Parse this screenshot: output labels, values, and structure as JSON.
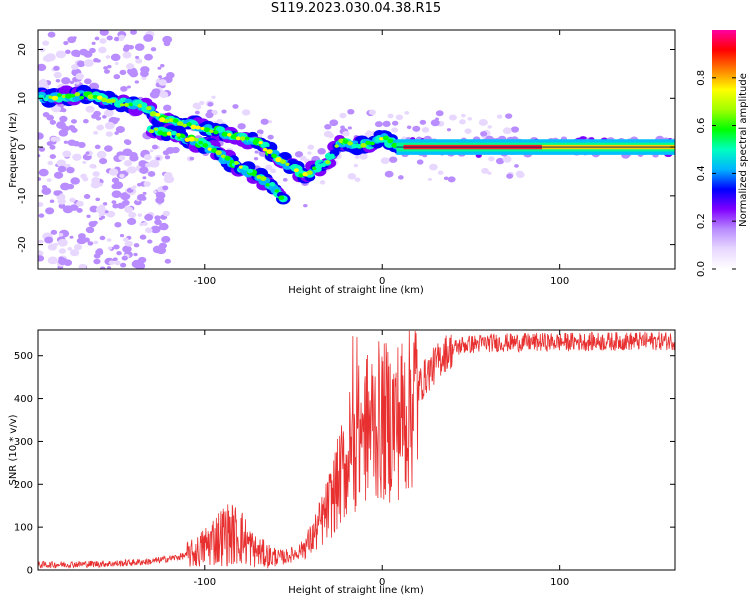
{
  "title": "S119.2023.030.04.38.R15",
  "chart_data": [
    {
      "type": "heatmap",
      "xlabel": "Height of straight line (km)",
      "ylabel": "Frequency (Hz)",
      "xlim": [
        -194,
        165
      ],
      "ylim": [
        -25,
        24
      ],
      "x_ticks": [
        -100,
        0,
        100
      ],
      "y_ticks": [
        -20,
        -10,
        0,
        10,
        20
      ],
      "colorbar": {
        "label": "Normalized spectral amplitude",
        "range": [
          0,
          1
        ],
        "ticks": [
          "0.0",
          "0.2",
          "0.4",
          "0.6",
          "0.8"
        ],
        "colors": [
          "#ffffff",
          "#e8d8ff",
          "#b98cff",
          "#8000ff",
          "#0000ff",
          "#00b4ff",
          "#00ffc0",
          "#00ff00",
          "#a0ff00",
          "#ffff00",
          "#ff8000",
          "#ff0000",
          "#ff00a0"
        ]
      },
      "ridge_main": [
        [
          -190,
          10
        ],
        [
          -175,
          10.5
        ],
        [
          -165,
          10.5
        ],
        [
          -150,
          9
        ],
        [
          -135,
          8.5
        ],
        [
          -125,
          6
        ],
        [
          -115,
          5
        ],
        [
          -100,
          4
        ],
        [
          -90,
          3
        ],
        [
          -80,
          2
        ],
        [
          -70,
          1
        ],
        [
          -60,
          -2
        ],
        [
          -50,
          -4
        ],
        [
          -45,
          -6
        ],
        [
          -40,
          -5
        ],
        [
          -33,
          -3.5
        ],
        [
          -28,
          -2
        ],
        [
          -25,
          1
        ],
        [
          -20,
          1
        ],
        [
          -15,
          0
        ],
        [
          -10,
          0.5
        ],
        [
          -5,
          1
        ],
        [
          0,
          2
        ],
        [
          5,
          1
        ],
        [
          10,
          0
        ],
        [
          20,
          0
        ],
        [
          60,
          0
        ],
        [
          100,
          0
        ],
        [
          165,
          0
        ]
      ],
      "ridge_lower": [
        [
          -130,
          3.5
        ],
        [
          -115,
          2.5
        ],
        [
          -100,
          0.5
        ],
        [
          -90,
          -2
        ],
        [
          -80,
          -4
        ],
        [
          -70,
          -6
        ],
        [
          -62,
          -8
        ],
        [
          -55,
          -11
        ]
      ]
    },
    {
      "type": "line",
      "xlabel": "Height of straight line (km)",
      "ylabel": "SNR (10 * v/v)",
      "xlim": [
        -194,
        165
      ],
      "ylim": [
        0,
        560
      ],
      "x_ticks": [
        -100,
        0,
        100
      ],
      "y_ticks": [
        0,
        100,
        200,
        300,
        400,
        500
      ],
      "color": "#e83030",
      "profile": [
        [
          -194,
          12
        ],
        [
          -150,
          15
        ],
        [
          -130,
          20
        ],
        [
          -115,
          30
        ],
        [
          -105,
          40
        ],
        [
          -95,
          70
        ],
        [
          -88,
          85
        ],
        [
          -80,
          80
        ],
        [
          -72,
          45
        ],
        [
          -62,
          30
        ],
        [
          -55,
          30
        ],
        [
          -48,
          40
        ],
        [
          -40,
          70
        ],
        [
          -32,
          130
        ],
        [
          -25,
          200
        ],
        [
          -18,
          280
        ],
        [
          -12,
          320
        ],
        [
          -5,
          345
        ],
        [
          5,
          345
        ],
        [
          12,
          360
        ],
        [
          18,
          410
        ],
        [
          25,
          455
        ],
        [
          35,
          505
        ],
        [
          45,
          525
        ],
        [
          60,
          530
        ],
        [
          100,
          532
        ],
        [
          165,
          535
        ]
      ]
    }
  ]
}
